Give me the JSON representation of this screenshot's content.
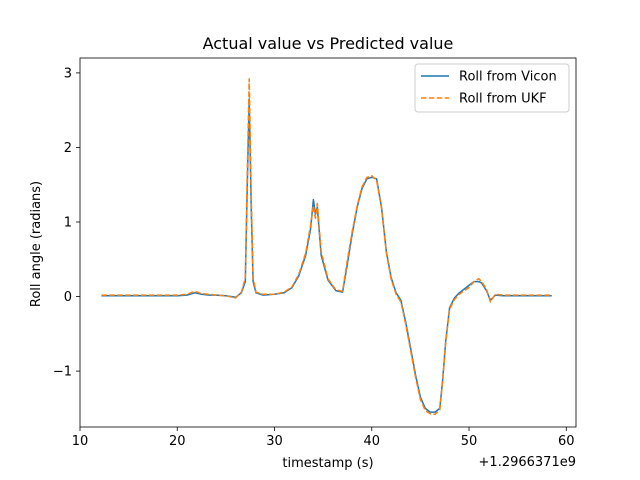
{
  "chart_data": {
    "type": "line",
    "title": "Actual value vs Predicted value",
    "xlabel": "timestamp (s)",
    "ylabel": "Roll angle (radians)",
    "x_offset_label": "+1.2966371e9",
    "xlim": [
      10,
      61
    ],
    "ylim": [
      -1.75,
      3.2
    ],
    "xticks": [
      10,
      20,
      30,
      40,
      50,
      60
    ],
    "yticks": [
      -1,
      0,
      1,
      2,
      3
    ],
    "ytick_labels": [
      "−1",
      "0",
      "1",
      "2",
      "3"
    ],
    "grid": false,
    "legend_position": "top-right",
    "series": [
      {
        "name": "Roll from Vicon",
        "color": "#1f77b4",
        "style": "solid",
        "x": [
          12.2,
          15,
          18,
          20,
          21,
          21.8,
          22.5,
          23.3,
          24,
          25,
          26,
          26.6,
          27.0,
          27.2,
          27.4,
          27.6,
          27.8,
          28.1,
          28.8,
          30,
          31,
          31.8,
          32.5,
          33.2,
          33.7,
          34.0,
          34.2,
          34.4,
          34.8,
          35.5,
          36.3,
          37.0,
          37.5,
          38.0,
          38.5,
          39.0,
          39.5,
          40.0,
          40.5,
          41.0,
          41.5,
          42.0,
          42.5,
          43.0,
          43.5,
          44.0,
          44.5,
          45.0,
          45.5,
          46.0,
          46.5,
          47.0,
          47.3,
          47.6,
          48.0,
          48.5,
          49.0,
          49.5,
          50.0,
          50.5,
          51.0,
          51.3,
          51.8,
          52.2,
          52.7,
          53.5,
          55.5,
          58.5
        ],
        "y": [
          0.01,
          0.01,
          0.01,
          0.01,
          0.02,
          0.05,
          0.03,
          0.02,
          0.02,
          0.01,
          -0.01,
          0.05,
          0.2,
          1.5,
          2.65,
          1.2,
          0.2,
          0.05,
          0.02,
          0.03,
          0.05,
          0.12,
          0.28,
          0.55,
          0.9,
          1.3,
          1.1,
          1.2,
          0.55,
          0.22,
          0.08,
          0.06,
          0.45,
          0.85,
          1.2,
          1.45,
          1.58,
          1.6,
          1.58,
          1.2,
          0.6,
          0.25,
          0.05,
          -0.05,
          -0.35,
          -0.7,
          -1.05,
          -1.35,
          -1.5,
          -1.55,
          -1.55,
          -1.5,
          -1.1,
          -0.6,
          -0.15,
          -0.02,
          0.05,
          0.1,
          0.15,
          0.2,
          0.2,
          0.18,
          0.08,
          -0.05,
          0.02,
          0.01,
          0.01,
          0.01
        ]
      },
      {
        "name": "Roll from UKF",
        "color": "#ff7f0e",
        "style": "dashed",
        "x": [
          12.2,
          15,
          18,
          20,
          21,
          21.8,
          22.5,
          23.3,
          24,
          25,
          26,
          26.6,
          27.0,
          27.2,
          27.4,
          27.6,
          27.8,
          28.1,
          28.8,
          30,
          31,
          31.8,
          32.5,
          33.2,
          33.7,
          34.0,
          34.2,
          34.4,
          34.8,
          35.5,
          36.3,
          37.0,
          37.5,
          38.0,
          38.5,
          39.0,
          39.5,
          40.0,
          40.5,
          41.0,
          41.5,
          42.0,
          42.5,
          43.0,
          43.5,
          44.0,
          44.5,
          45.0,
          45.5,
          46.0,
          46.5,
          47.0,
          47.3,
          47.6,
          48.0,
          48.5,
          49.0,
          49.5,
          50.0,
          50.5,
          51.0,
          51.3,
          51.8,
          52.2,
          52.7,
          53.5,
          55.5,
          58.5
        ],
        "y": [
          0.02,
          0.02,
          0.02,
          0.02,
          0.03,
          0.07,
          0.04,
          0.03,
          0.02,
          0.01,
          -0.02,
          0.06,
          0.25,
          1.7,
          2.92,
          1.4,
          0.25,
          0.06,
          0.03,
          0.03,
          0.06,
          0.13,
          0.3,
          0.58,
          0.95,
          1.22,
          1.05,
          1.25,
          0.6,
          0.24,
          0.09,
          0.07,
          0.5,
          0.88,
          1.22,
          1.47,
          1.6,
          1.62,
          1.56,
          1.18,
          0.58,
          0.23,
          0.03,
          -0.07,
          -0.38,
          -0.73,
          -1.08,
          -1.38,
          -1.53,
          -1.57,
          -1.58,
          -1.52,
          -1.12,
          -0.62,
          -0.17,
          -0.04,
          0.03,
          0.08,
          0.12,
          0.2,
          0.24,
          0.2,
          0.1,
          -0.07,
          0.03,
          0.02,
          0.02,
          0.02
        ]
      }
    ]
  }
}
